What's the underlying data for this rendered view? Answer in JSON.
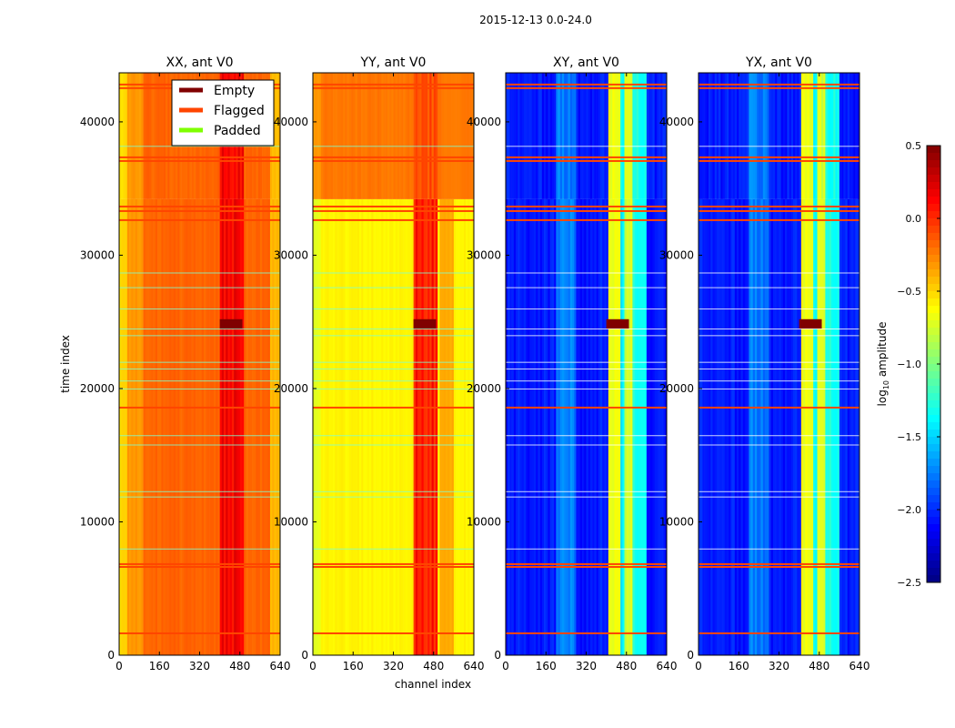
{
  "chart_data": {
    "type": "heatmap",
    "suptitle": "2015-12-13 0.0-24.0",
    "xlabel": "channel index",
    "ylabel": "time index",
    "xlim": [
      0,
      640
    ],
    "ylim": [
      0,
      43680
    ],
    "xticks": [
      "0",
      "160",
      "320",
      "480",
      "640"
    ],
    "yticks": [
      "0",
      "10000",
      "20000",
      "30000",
      "40000"
    ],
    "panels": [
      {
        "title": "XX, ant V0",
        "kind": "auto"
      },
      {
        "title": "YY, ant V0",
        "kind": "auto"
      },
      {
        "title": "XY, ant V0",
        "kind": "cross"
      },
      {
        "title": "YX, ant V0",
        "kind": "cross"
      }
    ],
    "legend": {
      "location": "upper-left panel, top-right",
      "entries": [
        {
          "label": "Empty",
          "color": "#800000"
        },
        {
          "label": "Flagged",
          "color": "#ff4500"
        },
        {
          "label": "Padded",
          "color": "#7fff00"
        }
      ]
    },
    "flagged_rows": [
      42800,
      42530,
      37340,
      37065,
      33650,
      33310,
      32630,
      18570,
      6830,
      6620,
      1640
    ],
    "padded_rows": [
      38200,
      28700,
      27600,
      26000,
      24500,
      24000,
      22000,
      21500,
      20600,
      20000,
      16500,
      15800,
      12300,
      11900,
      8000
    ],
    "empty_region": {
      "channels": [
        400,
        490
      ],
      "time": [
        24500,
        25200
      ]
    },
    "colorbar": {
      "label": "log10 amplitude",
      "range": [
        -2.5,
        0.5
      ],
      "ticks": [
        "0.5",
        "0.0",
        "−0.5",
        "−1.0",
        "−1.5",
        "−2.0",
        "−2.5"
      ],
      "colormap": "jet"
    }
  }
}
